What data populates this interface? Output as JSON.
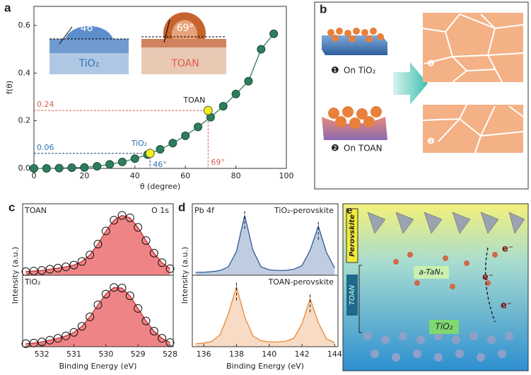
{
  "chart_data": [
    {
      "type": "line",
      "panel_label": "a",
      "ylabel": "f(θ)",
      "xlabel": "θ (degree)",
      "x": [
        0,
        5,
        10,
        15,
        20,
        25,
        30,
        35,
        40,
        45,
        50,
        55,
        60,
        65,
        70,
        75,
        80,
        85,
        90,
        95
      ],
      "values": [
        0,
        0,
        0.001,
        0.003,
        0.004,
        0.009,
        0.017,
        0.027,
        0.041,
        0.058,
        0.08,
        0.106,
        0.137,
        0.174,
        0.215,
        0.261,
        0.312,
        0.366,
        0.5,
        0.565
      ],
      "color": "#2f7d5c",
      "xlim": [
        0,
        100
      ],
      "xticks": [
        0,
        20,
        40,
        60,
        80,
        100
      ],
      "ylim": [
        0,
        0.68
      ],
      "yticks": [
        {
          "value": 0,
          "label": "0.0"
        },
        {
          "value": 0.2,
          "label": "0.2"
        },
        {
          "value": 0.4,
          "label": "0.4"
        },
        {
          "value": 0.6,
          "label": "0.6"
        }
      ],
      "highlights": {
        "names": [
          "TiO₂",
          "TOAN"
        ],
        "x": [
          46,
          69
        ],
        "x_labels": [
          "46°",
          "69°"
        ],
        "values": [
          0.063,
          0.243
        ],
        "value_labels": [
          "0.06",
          "0.24"
        ],
        "colors": [
          "#2e75b6",
          "#e05a4e"
        ],
        "color": "#f2ee1a"
      },
      "insets": [
        {
          "angle_label": "46°",
          "label": "TiO₂"
        },
        {
          "angle_label": "69°",
          "label": "TOAN"
        }
      ]
    },
    {
      "type": "area",
      "panel_label": "c",
      "annotation": "O 1s",
      "xlabel": "Binding Energy (eV)",
      "ylabel": "Intensity (a.u.)",
      "markers": true,
      "x": [
        532.5,
        532.25,
        532,
        531.75,
        531.5,
        531.25,
        531,
        530.75,
        530.5,
        530.25,
        530,
        529.75,
        529.5,
        529.25,
        529,
        528.75,
        528.5,
        528.25,
        528
      ],
      "xlim": [
        532.6,
        527.9
      ],
      "xticks": [
        532,
        531,
        530,
        529,
        528
      ],
      "ylim": [
        0,
        1.1
      ],
      "series": [
        {
          "name": "TOAN",
          "color": "#ec6f72",
          "values": [
            0.06,
            0.07,
            0.08,
            0.1,
            0.12,
            0.14,
            0.17,
            0.23,
            0.34,
            0.52,
            0.74,
            0.92,
            1,
            0.96,
            0.8,
            0.58,
            0.37,
            0.21,
            0.11
          ]
        },
        {
          "name": "TiO₂",
          "color": "#ec6f72",
          "values": [
            0.05,
            0.06,
            0.08,
            0.11,
            0.14,
            0.18,
            0.24,
            0.34,
            0.5,
            0.7,
            0.88,
            0.99,
            0.98,
            0.85,
            0.64,
            0.43,
            0.26,
            0.14,
            0.07
          ]
        }
      ]
    },
    {
      "type": "area",
      "panel_label": "d",
      "annotation": "Pb 4f",
      "xlabel": "Binding Energy (eV)",
      "ylabel": "Intensity (a.u.)",
      "markers": false,
      "x": [
        135.5,
        136,
        136.5,
        137,
        137.5,
        138,
        138.5,
        139,
        139.5,
        140,
        140.5,
        141,
        141.5,
        142,
        142.5,
        143,
        143.5,
        144
      ],
      "xlim": [
        135.3,
        144.2
      ],
      "xticks": [
        136,
        138,
        140,
        142,
        144
      ],
      "ylim": [
        0,
        1.1
      ],
      "series": [
        {
          "name": "TiO₂-perovskite",
          "color": "#2e5a9c",
          "values": [
            0.05,
            0.05,
            0.06,
            0.08,
            0.14,
            0.4,
            1,
            0.42,
            0.14,
            0.09,
            0.08,
            0.08,
            0.1,
            0.16,
            0.42,
            0.82,
            0.38,
            0.12
          ]
        },
        {
          "name": "TOAN-perovskite",
          "color": "#e8883a",
          "values": [
            0.05,
            0.06,
            0.09,
            0.2,
            0.55,
            1,
            0.5,
            0.18,
            0.1,
            0.08,
            0.08,
            0.09,
            0.14,
            0.38,
            0.8,
            0.4,
            0.13,
            0.07
          ]
        }
      ]
    }
  ],
  "panel_b": {
    "panel_label": "b",
    "steps": [
      {
        "badge": "❶",
        "label": "On TiO₂"
      },
      {
        "badge": "❷",
        "label": "On TOAN"
      }
    ]
  },
  "panel_e": {
    "panel_label": "e",
    "perovskite": "Perovskite",
    "toan": "TOAN",
    "tanx": "a-TaNₓ",
    "tio2": "TiO₂",
    "electron": "e⁻"
  }
}
